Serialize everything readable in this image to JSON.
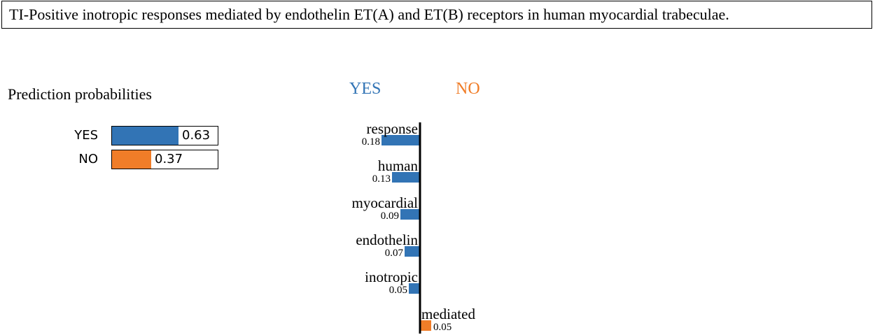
{
  "header": {
    "text": "TI-Positive inotropic responses mediated by endothelin ET(A) and ET(B) receptors in human myocardial trabeculae."
  },
  "prediction": {
    "title": "Prediction probabilities",
    "items": [
      {
        "label": "YES",
        "value": 0.63,
        "value_text": "0.63",
        "color": "#3274b5"
      },
      {
        "label": "NO",
        "value": 0.37,
        "value_text": "0.37",
        "color": "#f07d28"
      }
    ]
  },
  "classes": {
    "yes_label": "YES",
    "yes_color": "#3274b5",
    "no_label": "NO",
    "no_color": "#f07d28"
  },
  "chart_data": {
    "type": "bar",
    "categories": [
      "response",
      "human",
      "myocardial",
      "endothelin",
      "inotropic",
      "mediated"
    ],
    "series": [
      {
        "values": [
          0.18,
          0.13,
          0.09,
          0.07,
          0.05,
          0.05
        ],
        "value_labels": [
          "0.18",
          "0.13",
          "0.09",
          "0.07",
          "0.05",
          "0.05"
        ],
        "sides": [
          "YES",
          "YES",
          "YES",
          "YES",
          "YES",
          "NO"
        ]
      }
    ],
    "xlabel": "",
    "ylabel": ""
  }
}
